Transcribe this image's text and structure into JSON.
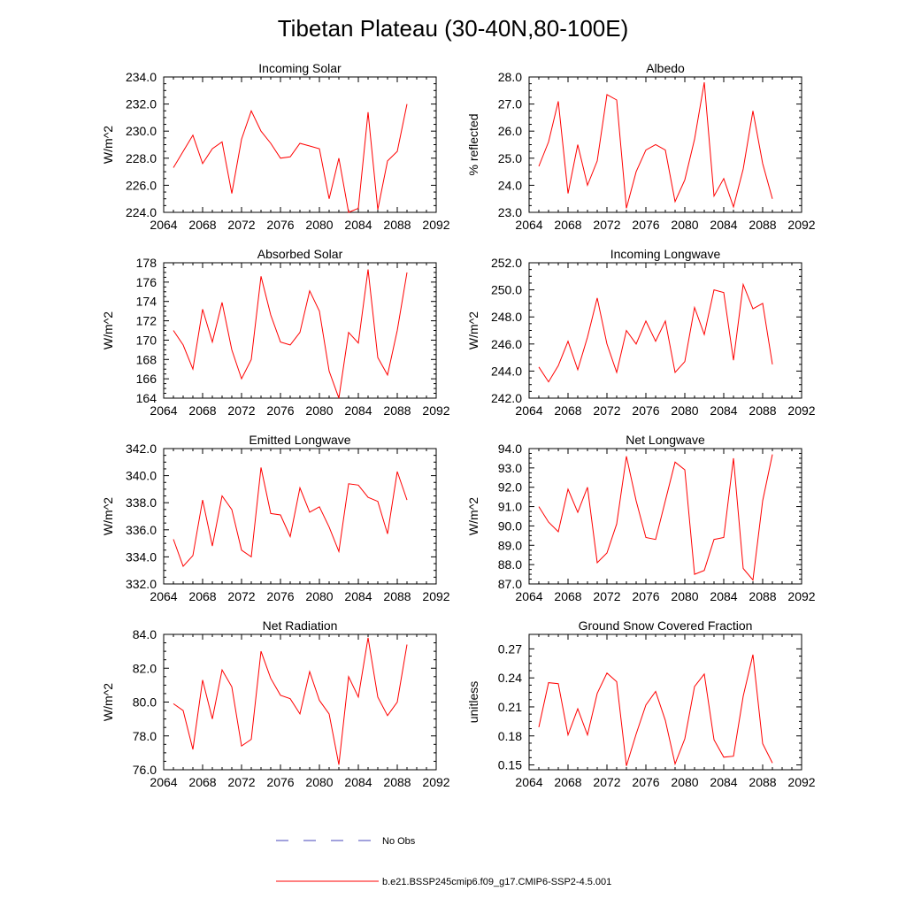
{
  "figure": {
    "title": "Tibetan Plateau (30-40N,80-100E)"
  },
  "legend": {
    "entries": [
      {
        "label": "No Obs",
        "color": "#4444bb",
        "style": "dashed"
      },
      {
        "label": "b.e21.BSSP245cmip6.f09_g17.CMIP6-SSP2-4.5.001",
        "color": "#ff0000",
        "style": "solid"
      }
    ]
  },
  "chart_data": [
    {
      "type": "line",
      "title": "Incoming Solar",
      "ylabel": "W/m^2",
      "xlim": [
        2064,
        2092
      ],
      "xticks": [
        "2064",
        "2068",
        "2072",
        "2076",
        "2080",
        "2084",
        "2088",
        "2092"
      ],
      "ylim": [
        224,
        234
      ],
      "yticks": [
        "224.0",
        "226.0",
        "228.0",
        "230.0",
        "232.0",
        "234.0"
      ],
      "x": [
        2065,
        2066,
        2067,
        2068,
        2069,
        2070,
        2071,
        2072,
        2073,
        2074,
        2075,
        2076,
        2077,
        2078,
        2079,
        2080,
        2081,
        2082,
        2083,
        2084,
        2085,
        2086,
        2087,
        2088,
        2089
      ],
      "series": [
        {
          "name": "b.e21.BSSP245cmip6.f09_g17.CMIP6-SSP2-4.5.001",
          "color": "#ff0000",
          "values": [
            227.3,
            228.5,
            229.7,
            227.6,
            228.7,
            229.2,
            225.4,
            229.4,
            231.5,
            230.0,
            229.1,
            228.0,
            228.1,
            229.1,
            228.9,
            228.7,
            225.0,
            228.0,
            224.0,
            224.3,
            231.4,
            224.2,
            227.8,
            228.5,
            232.0
          ]
        }
      ]
    },
    {
      "type": "line",
      "title": "Albedo",
      "ylabel": "% reflected",
      "xlim": [
        2064,
        2092
      ],
      "xticks": [
        "2064",
        "2068",
        "2072",
        "2076",
        "2080",
        "2084",
        "2088",
        "2092"
      ],
      "ylim": [
        23,
        28
      ],
      "yticks": [
        "23.0",
        "24.0",
        "25.0",
        "26.0",
        "27.0",
        "28.0"
      ],
      "x": [
        2065,
        2066,
        2067,
        2068,
        2069,
        2070,
        2071,
        2072,
        2073,
        2074,
        2075,
        2076,
        2077,
        2078,
        2079,
        2080,
        2081,
        2082,
        2083,
        2084,
        2085,
        2086,
        2087,
        2088,
        2089
      ],
      "series": [
        {
          "name": "b.e21.BSSP245cmip6.f09_g17.CMIP6-SSP2-4.5.001",
          "color": "#ff0000",
          "values": [
            24.7,
            25.6,
            27.1,
            23.7,
            25.5,
            24.0,
            24.9,
            27.35,
            27.15,
            23.15,
            24.5,
            25.3,
            25.5,
            25.3,
            23.4,
            24.2,
            25.7,
            27.8,
            23.6,
            24.25,
            23.2,
            24.6,
            26.75,
            24.8,
            23.5
          ]
        }
      ]
    },
    {
      "type": "line",
      "title": "Absorbed Solar",
      "ylabel": "W/m^2",
      "xlim": [
        2064,
        2092
      ],
      "xticks": [
        "2064",
        "2068",
        "2072",
        "2076",
        "2080",
        "2084",
        "2088",
        "2092"
      ],
      "ylim": [
        164,
        178
      ],
      "yticks": [
        "164",
        "166",
        "168",
        "170",
        "172",
        "174",
        "176",
        "178"
      ],
      "x": [
        2065,
        2066,
        2067,
        2068,
        2069,
        2070,
        2071,
        2072,
        2073,
        2074,
        2075,
        2076,
        2077,
        2078,
        2079,
        2080,
        2081,
        2082,
        2083,
        2084,
        2085,
        2086,
        2087,
        2088,
        2089
      ],
      "series": [
        {
          "name": "b.e21.BSSP245cmip6.f09_g17.CMIP6-SSP2-4.5.001",
          "color": "#ff0000",
          "values": [
            171.0,
            169.5,
            167.0,
            173.2,
            169.8,
            173.9,
            169.0,
            166.0,
            168.0,
            176.6,
            172.6,
            169.8,
            169.5,
            170.8,
            175.1,
            173.0,
            166.8,
            164.0,
            170.8,
            169.7,
            177.3,
            168.2,
            166.4,
            171.0,
            177.0
          ]
        }
      ]
    },
    {
      "type": "line",
      "title": "Incoming Longwave",
      "ylabel": "W/m^2",
      "xlim": [
        2064,
        2092
      ],
      "xticks": [
        "2064",
        "2068",
        "2072",
        "2076",
        "2080",
        "2084",
        "2088",
        "2092"
      ],
      "ylim": [
        242,
        252
      ],
      "yticks": [
        "242.0",
        "244.0",
        "246.0",
        "248.0",
        "250.0",
        "252.0"
      ],
      "x": [
        2065,
        2066,
        2067,
        2068,
        2069,
        2070,
        2071,
        2072,
        2073,
        2074,
        2075,
        2076,
        2077,
        2078,
        2079,
        2080,
        2081,
        2082,
        2083,
        2084,
        2085,
        2086,
        2087,
        2088,
        2089
      ],
      "series": [
        {
          "name": "b.e21.BSSP245cmip6.f09_g17.CMIP6-SSP2-4.5.001",
          "color": "#ff0000",
          "values": [
            244.3,
            243.2,
            244.4,
            246.2,
            244.1,
            246.5,
            249.4,
            246.0,
            243.9,
            247.0,
            246.0,
            247.7,
            246.2,
            247.7,
            243.9,
            244.7,
            248.7,
            246.7,
            250.0,
            249.8,
            244.8,
            250.4,
            248.6,
            249.0,
            244.5
          ]
        }
      ]
    },
    {
      "type": "line",
      "title": "Emitted Longwave",
      "ylabel": "W/m^2",
      "xlim": [
        2064,
        2092
      ],
      "xticks": [
        "2064",
        "2068",
        "2072",
        "2076",
        "2080",
        "2084",
        "2088",
        "2092"
      ],
      "ylim": [
        332,
        342
      ],
      "yticks": [
        "332.0",
        "334.0",
        "336.0",
        "338.0",
        "340.0",
        "342.0"
      ],
      "x": [
        2065,
        2066,
        2067,
        2068,
        2069,
        2070,
        2071,
        2072,
        2073,
        2074,
        2075,
        2076,
        2077,
        2078,
        2079,
        2080,
        2081,
        2082,
        2083,
        2084,
        2085,
        2086,
        2087,
        2088,
        2089
      ],
      "series": [
        {
          "name": "b.e21.BSSP245cmip6.f09_g17.CMIP6-SSP2-4.5.001",
          "color": "#ff0000",
          "values": [
            335.3,
            333.3,
            334.1,
            338.2,
            334.8,
            338.5,
            337.5,
            334.5,
            334.0,
            340.6,
            337.2,
            337.1,
            335.5,
            339.1,
            337.3,
            337.7,
            336.2,
            334.4,
            339.4,
            339.3,
            338.4,
            338.1,
            335.7,
            340.3,
            338.2
          ]
        }
      ]
    },
    {
      "type": "line",
      "title": "Net Longwave",
      "ylabel": "W/m^2",
      "xlim": [
        2064,
        2092
      ],
      "xticks": [
        "2064",
        "2068",
        "2072",
        "2076",
        "2080",
        "2084",
        "2088",
        "2092"
      ],
      "ylim": [
        87,
        94
      ],
      "yticks": [
        "87.0",
        "88.0",
        "89.0",
        "90.0",
        "91.0",
        "92.0",
        "93.0",
        "94.0"
      ],
      "x": [
        2065,
        2066,
        2067,
        2068,
        2069,
        2070,
        2071,
        2072,
        2073,
        2074,
        2075,
        2076,
        2077,
        2078,
        2079,
        2080,
        2081,
        2082,
        2083,
        2084,
        2085,
        2086,
        2087,
        2088,
        2089
      ],
      "series": [
        {
          "name": "b.e21.BSSP245cmip6.f09_g17.CMIP6-SSP2-4.5.001",
          "color": "#ff0000",
          "values": [
            91.0,
            90.2,
            89.7,
            91.9,
            90.7,
            92.0,
            88.1,
            88.6,
            90.1,
            93.6,
            91.3,
            89.4,
            89.3,
            91.3,
            93.3,
            92.9,
            87.5,
            87.7,
            89.3,
            89.4,
            93.5,
            87.8,
            87.2,
            91.3,
            93.7
          ]
        }
      ]
    },
    {
      "type": "line",
      "title": "Net Radiation",
      "ylabel": "W/m^2",
      "xlim": [
        2064,
        2092
      ],
      "xticks": [
        "2064",
        "2068",
        "2072",
        "2076",
        "2080",
        "2084",
        "2088",
        "2092"
      ],
      "ylim": [
        76,
        84
      ],
      "yticks": [
        "76.0",
        "78.0",
        "80.0",
        "82.0",
        "84.0"
      ],
      "x": [
        2065,
        2066,
        2067,
        2068,
        2069,
        2070,
        2071,
        2072,
        2073,
        2074,
        2075,
        2076,
        2077,
        2078,
        2079,
        2080,
        2081,
        2082,
        2083,
        2084,
        2085,
        2086,
        2087,
        2088,
        2089
      ],
      "series": [
        {
          "name": "b.e21.BSSP245cmip6.f09_g17.CMIP6-SSP2-4.5.001",
          "color": "#ff0000",
          "values": [
            79.9,
            79.5,
            77.2,
            81.3,
            79.0,
            81.9,
            80.9,
            77.4,
            77.8,
            83.0,
            81.4,
            80.4,
            80.2,
            79.3,
            81.8,
            80.1,
            79.3,
            76.3,
            81.5,
            80.3,
            83.8,
            80.3,
            79.2,
            80.0,
            83.4
          ]
        }
      ]
    },
    {
      "type": "line",
      "title": "Ground Snow Covered Fraction",
      "ylabel": "unitless",
      "xlim": [
        2064,
        2092
      ],
      "xticks": [
        "2064",
        "2068",
        "2072",
        "2076",
        "2080",
        "2084",
        "2088",
        "2092"
      ],
      "ylim": [
        0.145,
        0.285
      ],
      "yticks": [
        "0.15",
        "0.18",
        "0.21",
        "0.24",
        "0.27"
      ],
      "ytick_values": [
        0.15,
        0.18,
        0.21,
        0.24,
        0.27
      ],
      "x": [
        2065,
        2066,
        2067,
        2068,
        2069,
        2070,
        2071,
        2072,
        2073,
        2074,
        2075,
        2076,
        2077,
        2078,
        2079,
        2080,
        2081,
        2082,
        2083,
        2084,
        2085,
        2086,
        2087,
        2088,
        2089
      ],
      "series": [
        {
          "name": "b.e21.BSSP245cmip6.f09_g17.CMIP6-SSP2-4.5.001",
          "color": "#ff0000",
          "values": [
            0.189,
            0.235,
            0.234,
            0.181,
            0.208,
            0.181,
            0.224,
            0.245,
            0.236,
            0.149,
            0.182,
            0.212,
            0.226,
            0.196,
            0.151,
            0.177,
            0.231,
            0.244,
            0.176,
            0.158,
            0.159,
            0.221,
            0.264,
            0.172,
            0.152
          ]
        }
      ]
    }
  ]
}
